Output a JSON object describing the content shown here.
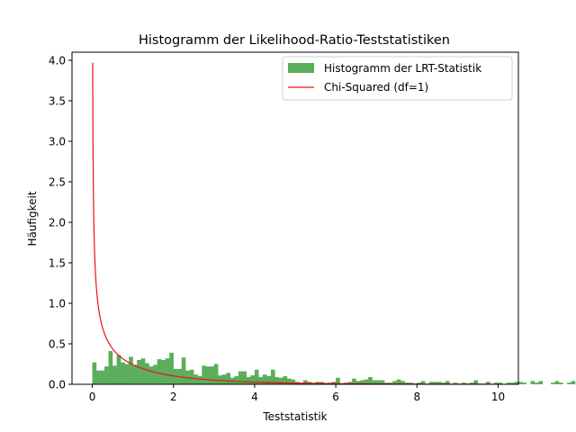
{
  "chart_data": {
    "type": "bar",
    "title": "Histogramm der Likelihood-Ratio-Teststatistiken",
    "xlabel": "Teststatistik",
    "ylabel": "Häufigkeit",
    "xlim": [
      -0.5,
      10.5
    ],
    "ylim": [
      0,
      4.1
    ],
    "xticks": [
      0,
      2,
      4,
      6,
      8,
      10
    ],
    "yticks": [
      0.0,
      0.5,
      1.0,
      1.5,
      2.0,
      2.5,
      3.0,
      3.5,
      4.0
    ],
    "grid": false,
    "legend_position": "top-right",
    "histogram": {
      "name": "Histogramm der LRT-Statistik",
      "color": "#5aad5a",
      "bins_start": 0.0,
      "bin_width": 0.1,
      "values": [
        0.27,
        0.17,
        0.17,
        0.22,
        0.41,
        0.23,
        0.36,
        0.27,
        0.25,
        0.34,
        0.24,
        0.3,
        0.32,
        0.26,
        0.22,
        0.24,
        0.31,
        0.3,
        0.32,
        0.39,
        0.19,
        0.19,
        0.33,
        0.17,
        0.18,
        0.12,
        0.1,
        0.23,
        0.22,
        0.22,
        0.25,
        0.11,
        0.12,
        0.14,
        0.08,
        0.1,
        0.16,
        0.16,
        0.09,
        0.11,
        0.18,
        0.09,
        0.12,
        0.1,
        0.18,
        0.09,
        0.08,
        0.1,
        0.07,
        0.06,
        0.03,
        0.02,
        0.05,
        0.03,
        0.01,
        0.03,
        0.03,
        0.0,
        0.02,
        0.03,
        0.08,
        0.0,
        0.02,
        0.03,
        0.07,
        0.04,
        0.05,
        0.06,
        0.09,
        0.05,
        0.05,
        0.05,
        0.02,
        0.02,
        0.04,
        0.06,
        0.04,
        0.02,
        0.02,
        0.0,
        0.02,
        0.04,
        0.0,
        0.03,
        0.03,
        0.03,
        0.02,
        0.04,
        0.0,
        0.02,
        0.0,
        0.02,
        0.01,
        0.02,
        0.05,
        0.0,
        0.0,
        0.03,
        0.0,
        0.02,
        0.02,
        0.0,
        0.02,
        0.02,
        0.03,
        0.03,
        0.02,
        0.0,
        0.04,
        0.02,
        0.04,
        0.0,
        0.0,
        0.02,
        0.04,
        0.02,
        0.0,
        0.02,
        0.04,
        0.0,
        0.03,
        0.0,
        0.0,
        0.02,
        0.03,
        0.02,
        0.0,
        0.0,
        0.02,
        0.0,
        0.0,
        0.02,
        0.0,
        0.02,
        0.0,
        0.0,
        0.02,
        0.0,
        0.02,
        0.03,
        0.0,
        0.0,
        0.02,
        0.0,
        0.02,
        0.0,
        0.0,
        0.02,
        0.02,
        0.0,
        0.0,
        0.0,
        0.0,
        0.02,
        0.0,
        0.02,
        0.0,
        0.0,
        0.02,
        0.0,
        0.03,
        0.02,
        0.0,
        0.0,
        0.0,
        0.0,
        0.0,
        0.02,
        0.02,
        0.0,
        0.0,
        0.0,
        0.0,
        0.0,
        0.0,
        0.02,
        0.0,
        0.02,
        0.0,
        0.0,
        0.0,
        0.0,
        0.0,
        0.03,
        0.0,
        0.02,
        0.0,
        0.01,
        0.0
      ]
    },
    "curve": {
      "name": "Chi-Squared (df=1)",
      "color": "#ee1111",
      "df": 1,
      "x_range": [
        0.01,
        10
      ]
    }
  }
}
